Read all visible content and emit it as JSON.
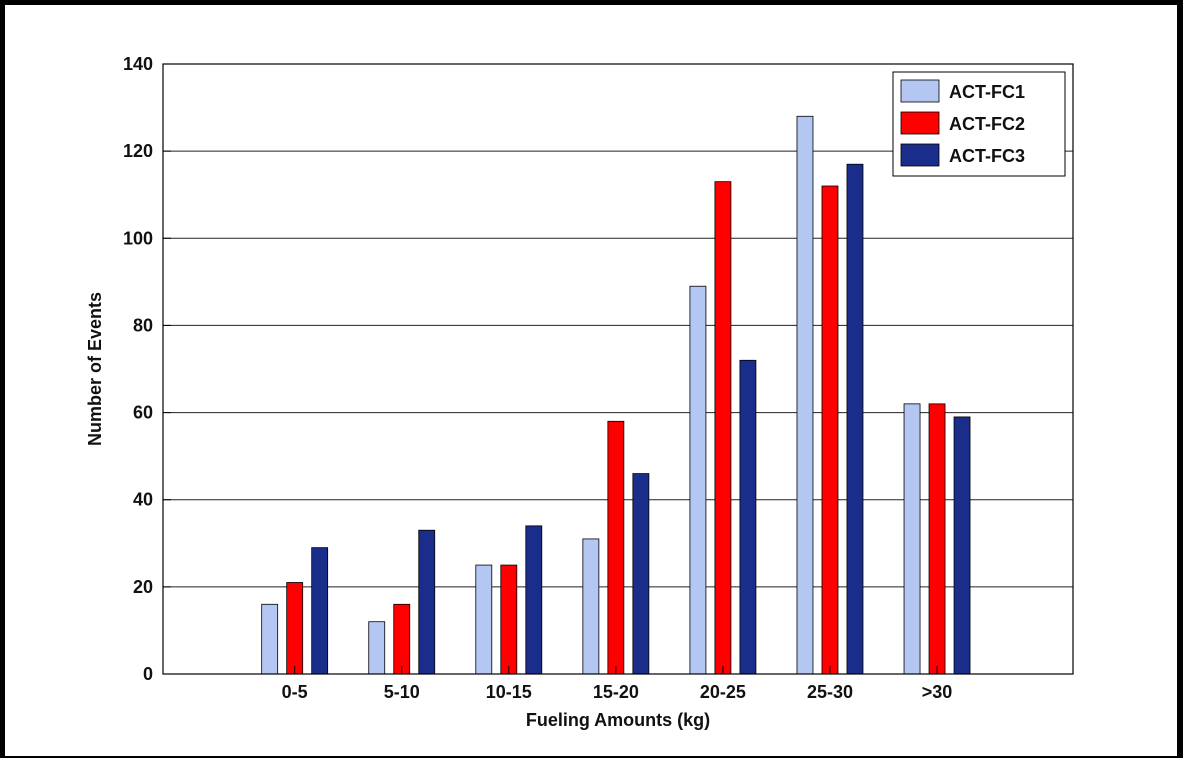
{
  "chart_data": {
    "type": "bar",
    "title": "",
    "xlabel": "Fueling Amounts (kg)",
    "ylabel": "Number of Events",
    "categories": [
      "0-5",
      "5-10",
      "10-15",
      "15-20",
      "20-25",
      "25-30",
      ">30"
    ],
    "series": [
      {
        "name": "ACT-FC1",
        "color": "#b4c7f2",
        "values": [
          16,
          12,
          25,
          31,
          89,
          128,
          62
        ]
      },
      {
        "name": "ACT-FC2",
        "color": "#ff0000",
        "values": [
          21,
          16,
          25,
          58,
          113,
          112,
          62
        ]
      },
      {
        "name": "ACT-FC3",
        "color": "#1a2d8a",
        "values": [
          29,
          33,
          34,
          46,
          72,
          117,
          59
        ]
      }
    ],
    "ylim": [
      0,
      140
    ],
    "yticks": [
      0,
      20,
      40,
      60,
      80,
      100,
      120,
      140
    ],
    "grid": "horizontal",
    "legend_position": "top-right"
  }
}
